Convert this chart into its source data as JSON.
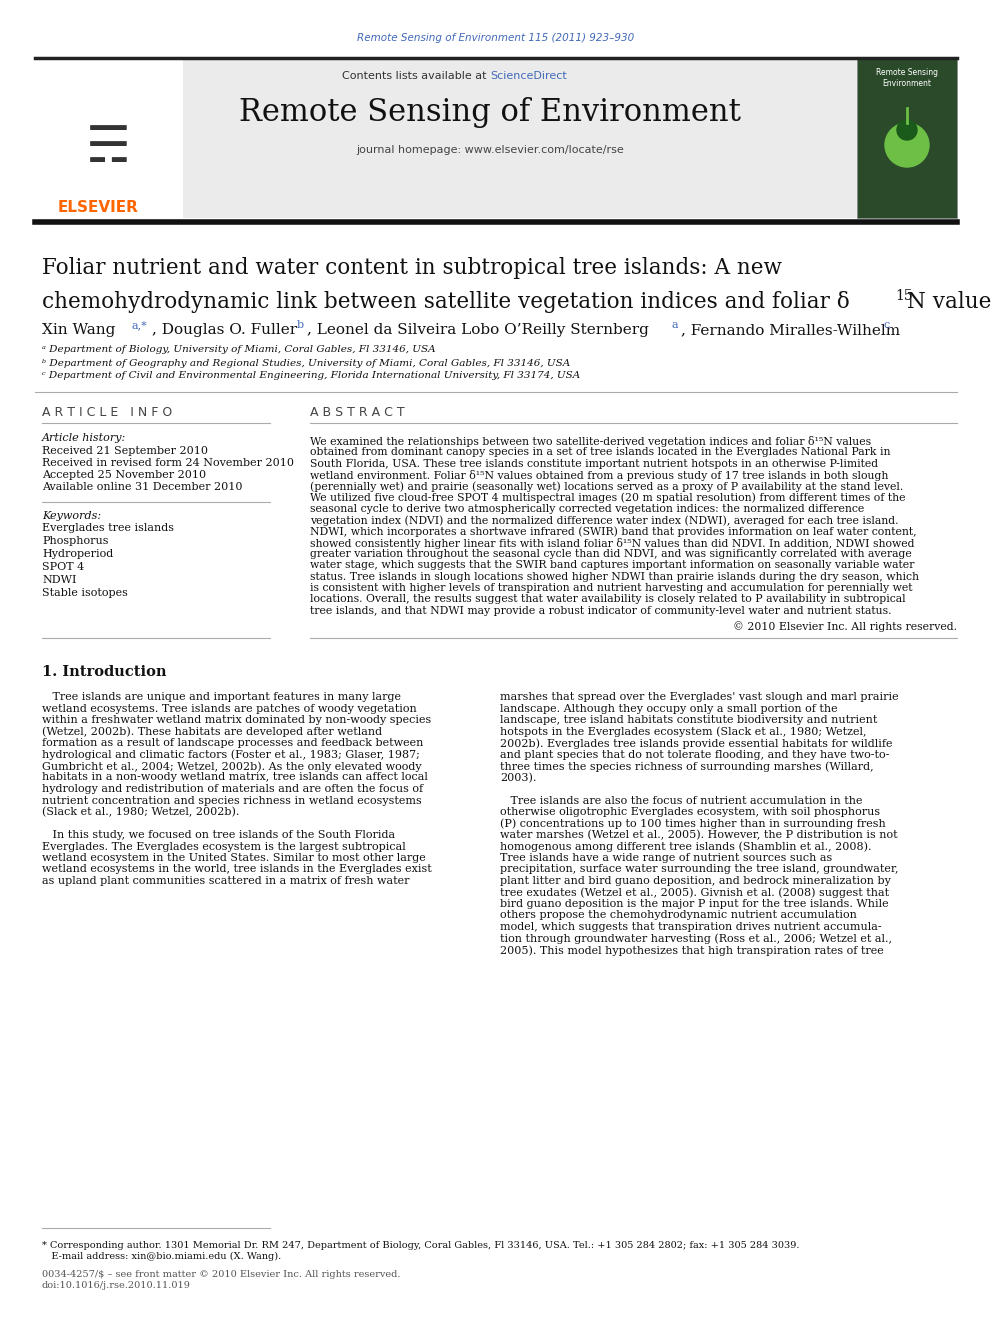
{
  "journal_ref": "Remote Sensing of Environment 115 (2011) 923–930",
  "journal_ref_color": "#4169b8",
  "contents_text": "Contents lists available at ",
  "sciencedirect_text": "ScienceDirect",
  "sciencedirect_color": "#4169b8",
  "journal_name": "Remote Sensing of Environment",
  "journal_homepage": "journal homepage: www.elsevier.com/locate/rse",
  "paper_title_line1": "Foliar nutrient and water content in subtropical tree islands: A new",
  "paper_title_line2": "chemohydrodynamic link between satellite vegetation indices and foliar δ",
  "paper_title_superscript": "15",
  "paper_title_end": "N values",
  "author_sup_color": "#4169b8",
  "affil_a": "ᵃ Department of Biology, University of Miami, Coral Gables, Fl 33146, USA",
  "affil_b": "ᵇ Department of Geography and Regional Studies, University of Miami, Coral Gables, Fl 33146, USA",
  "affil_c": "ᶜ Department of Civil and Environmental Engineering, Florida International University, Fl 33174, USA",
  "article_info_header": "A R T I C L E   I N F O",
  "abstract_header": "A B S T R A C T",
  "article_history_label": "Article history:",
  "received1": "Received 21 September 2010",
  "received2": "Received in revised form 24 November 2010",
  "accepted": "Accepted 25 November 2010",
  "available": "Available online 31 December 2010",
  "keywords_label": "Keywords:",
  "keywords": [
    "Everglades tree islands",
    "Phosphorus",
    "Hydroperiod",
    "SPOT 4",
    "NDWI",
    "Stable isotopes"
  ],
  "abstract_lines": [
    "We examined the relationships between two satellite-derived vegetation indices and foliar δ¹⁵N values",
    "obtained from dominant canopy species in a set of tree islands located in the Everglades National Park in",
    "South Florida, USA. These tree islands constitute important nutrient hotspots in an otherwise P-limited",
    "wetland environment. Foliar δ¹⁵N values obtained from a previous study of 17 tree islands in both slough",
    "(perennially wet) and prairie (seasonally wet) locations served as a proxy of P availability at the stand level.",
    "We utilized five cloud-free SPOT 4 multispectral images (20 m spatial resolution) from different times of the",
    "seasonal cycle to derive two atmospherically corrected vegetation indices: the normalized difference",
    "vegetation index (NDVI) and the normalized difference water index (NDWI), averaged for each tree island.",
    "NDWI, which incorporates a shortwave infrared (SWIR) band that provides information on leaf water content,",
    "showed consistently higher linear fits with island foliar δ¹⁵N values than did NDVI. In addition, NDWI showed",
    "greater variation throughout the seasonal cycle than did NDVI, and was significantly correlated with average",
    "water stage, which suggests that the SWIR band captures important information on seasonally variable water",
    "status. Tree islands in slough locations showed higher NDWI than prairie islands during the dry season, which",
    "is consistent with higher levels of transpiration and nutrient harvesting and accumulation for perennially wet",
    "locations. Overall, the results suggest that water availability is closely related to P availability in subtropical",
    "tree islands, and that NDWI may provide a robust indicator of community-level water and nutrient status."
  ],
  "copyright": "© 2010 Elsevier Inc. All rights reserved.",
  "intro_header": "1. Introduction",
  "intro_col1_lines": [
    "   Tree islands are unique and important features in many large",
    "wetland ecosystems. Tree islands are patches of woody vegetation",
    "within a freshwater wetland matrix dominated by non-woody species",
    "(Wetzel, 2002b). These habitats are developed after wetland",
    "formation as a result of landscape processes and feedback between",
    "hydrological and climatic factors (Foster et al., 1983; Glaser, 1987;",
    "Gumbricht et al., 2004; Wetzel, 2002b). As the only elevated woody",
    "habitats in a non-woody wetland matrix, tree islands can affect local",
    "hydrology and redistribution of materials and are often the focus of",
    "nutrient concentration and species richness in wetland ecosystems",
    "(Slack et al., 1980; Wetzel, 2002b).",
    "",
    "   In this study, we focused on tree islands of the South Florida",
    "Everglades. The Everglades ecosystem is the largest subtropical",
    "wetland ecosystem in the United States. Similar to most other large",
    "wetland ecosystems in the world, tree islands in the Everglades exist",
    "as upland plant communities scattered in a matrix of fresh water"
  ],
  "intro_col2_lines": [
    "marshes that spread over the Everglades' vast slough and marl prairie",
    "landscape. Although they occupy only a small portion of the",
    "landscape, tree island habitats constitute biodiversity and nutrient",
    "hotspots in the Everglades ecosystem (Slack et al., 1980; Wetzel,",
    "2002b). Everglades tree islands provide essential habitats for wildlife",
    "and plant species that do not tolerate flooding, and they have two-to-",
    "three times the species richness of surrounding marshes (Willard,",
    "2003).",
    "",
    "   Tree islands are also the focus of nutrient accumulation in the",
    "otherwise oligotrophic Everglades ecosystem, with soil phosphorus",
    "(P) concentrations up to 100 times higher than in surrounding fresh",
    "water marshes (Wetzel et al., 2005). However, the P distribution is not",
    "homogenous among different tree islands (Shamblin et al., 2008).",
    "Tree islands have a wide range of nutrient sources such as",
    "precipitation, surface water surrounding the tree island, groundwater,",
    "plant litter and bird guano deposition, and bedrock mineralization by",
    "tree exudates (Wetzel et al., 2005). Givnish et al. (2008) suggest that",
    "bird guano deposition is the major P input for the tree islands. While",
    "others propose the chemohydrodynamic nutrient accumulation",
    "model, which suggests that transpiration drives nutrient accumula-",
    "tion through groundwater harvesting (Ross et al., 2006; Wetzel et al.,",
    "2005). This model hypothesizes that high transpiration rates of tree"
  ],
  "footnote_line1": "* Corresponding author. 1301 Memorial Dr. RM 247, Department of Biology, Coral Gables, Fl 33146, USA. Tel.: +1 305 284 2802; fax: +1 305 284 3039.",
  "footnote_line2": "   E-mail address: xin@bio.miami.edu (X. Wang).",
  "issn_line1": "0034-4257/$ – see front matter © 2010 Elsevier Inc. All rights reserved.",
  "issn_line2": "doi:10.1016/j.rse.2010.11.019",
  "bg_color": "#ffffff",
  "text_color": "#000000",
  "link_color": "#4169b8"
}
